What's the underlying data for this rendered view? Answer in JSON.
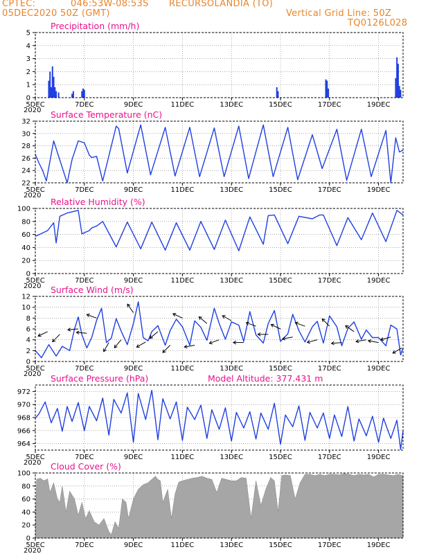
{
  "header": {
    "source": "CPTEC:",
    "coords": "046:53W-08:53S",
    "location": "RECURSOLANDIA (TO)",
    "datetime": "05DEC2020 50Z (GMT)",
    "grid_note": "Vertical Grid Line: 50Z",
    "model_code": "TQ0126L028"
  },
  "colors": {
    "header": "#e8842a",
    "titles": "#e8128c",
    "lines": "#1f3fe0",
    "cloud": "#a6a6a6"
  },
  "x_axis": {
    "day_range": [
      0,
      15
    ],
    "tick_days": [
      0,
      2,
      4,
      6,
      8,
      10,
      12,
      14
    ],
    "tick_labels": [
      "5DEC",
      "7DEC",
      "9DEC",
      "11DEC",
      "13DEC",
      "15DEC",
      "17DEC",
      "19DEC"
    ],
    "year_label": "2020"
  },
  "chart_data": [
    {
      "id": "precip",
      "type": "bar",
      "title": "Precipitation (mm/h)",
      "ylim": [
        0,
        5
      ],
      "yticks": [
        0,
        1,
        2,
        3,
        4,
        5
      ],
      "x": [
        0.55,
        0.6,
        0.65,
        0.7,
        0.75,
        0.8,
        0.85,
        0.95,
        1.5,
        1.55,
        1.9,
        1.95,
        2.0,
        9.85,
        9.9,
        11.85,
        11.9,
        11.95,
        14.7,
        14.75,
        14.8,
        14.85,
        14.9
      ],
      "values": [
        1.3,
        2.0,
        0.8,
        2.4,
        1.6,
        0.8,
        0.5,
        0.4,
        0.3,
        0.5,
        0.5,
        0.7,
        0.6,
        0.8,
        0.5,
        1.4,
        1.3,
        0.7,
        1.5,
        3.1,
        2.6,
        0.9,
        0.6
      ]
    },
    {
      "id": "temp",
      "type": "line",
      "title": "Surface Temperature (nC)",
      "ylim": [
        22,
        32
      ],
      "yticks": [
        22,
        24,
        26,
        28,
        30,
        32
      ],
      "x": [
        0,
        0.15,
        0.3,
        0.45,
        0.75,
        1.3,
        1.5,
        1.75,
        2.0,
        2.2,
        2.3,
        2.5,
        2.75,
        3.3,
        3.4,
        3.75,
        4.3,
        4.7,
        5.3,
        5.7,
        6.3,
        6.7,
        7.3,
        7.7,
        8.3,
        8.7,
        9.3,
        9.7,
        10.3,
        10.7,
        11.3,
        11.7,
        12.3,
        12.7,
        13.3,
        13.7,
        14.3,
        14.5,
        14.7,
        14.85,
        15.0
      ],
      "values": [
        26.6,
        25.2,
        24.0,
        22.3,
        28.8,
        22.0,
        25.8,
        28.8,
        28.5,
        26.5,
        26.1,
        26.3,
        22.3,
        31.2,
        30.8,
        23.6,
        31.4,
        23.3,
        31.0,
        23.1,
        31.0,
        23.0,
        30.9,
        23.0,
        31.2,
        22.7,
        31.4,
        23.0,
        31.0,
        22.5,
        29.8,
        24.3,
        30.7,
        22.4,
        30.7,
        23.0,
        30.5,
        22.0,
        29.3,
        27.0,
        27.3
      ]
    },
    {
      "id": "rh",
      "type": "line",
      "title": "Relative Humidity (%)",
      "ylim": [
        0,
        100
      ],
      "yticks": [
        0,
        20,
        40,
        60,
        80,
        100
      ],
      "x": [
        0,
        0.5,
        0.75,
        0.85,
        1.0,
        1.3,
        1.75,
        1.9,
        2.2,
        2.3,
        2.5,
        2.75,
        3.3,
        3.75,
        4.3,
        4.75,
        5.3,
        5.75,
        6.3,
        6.75,
        7.3,
        7.75,
        8.3,
        8.75,
        9.3,
        9.5,
        9.75,
        10.3,
        10.75,
        11.3,
        11.6,
        11.75,
        12.3,
        12.75,
        13.3,
        13.75,
        14.3,
        14.75,
        15.0
      ],
      "values": [
        57,
        66,
        78,
        47,
        88,
        93,
        97,
        61,
        66,
        70,
        73,
        80,
        41,
        79,
        38,
        79,
        36,
        78,
        36,
        80,
        37,
        82,
        35,
        87,
        45,
        89,
        90,
        46,
        88,
        84,
        90,
        90,
        43,
        86,
        52,
        93,
        49,
        97,
        90
      ]
    },
    {
      "id": "wind",
      "type": "line",
      "title": "Surface Wind (m/s)",
      "ylim": [
        0,
        12
      ],
      "yticks": [
        0,
        2,
        4,
        6,
        8,
        10,
        12
      ],
      "x": [
        0,
        0.25,
        0.55,
        0.85,
        1.1,
        1.4,
        1.6,
        1.75,
        1.9,
        2.1,
        2.3,
        2.5,
        2.7,
        2.9,
        3.1,
        3.3,
        3.5,
        3.75,
        4.0,
        4.2,
        4.4,
        4.6,
        4.75,
        5.0,
        5.3,
        5.5,
        5.75,
        6.0,
        6.3,
        6.5,
        6.75,
        7.0,
        7.3,
        7.5,
        7.75,
        8.0,
        8.3,
        8.5,
        8.75,
        9.0,
        9.3,
        9.5,
        9.75,
        10.0,
        10.3,
        10.5,
        10.75,
        11.0,
        11.3,
        11.5,
        11.75,
        12.0,
        12.3,
        12.5,
        12.75,
        13.0,
        13.3,
        13.5,
        13.75,
        14.0,
        14.3,
        14.5,
        14.75,
        14.9,
        15.0
      ],
      "values": [
        2,
        0.7,
        3.1,
        1.0,
        2.8,
        2.0,
        6.0,
        8.2,
        4.9,
        2.5,
        4.4,
        7.6,
        9.8,
        3.5,
        4.3,
        7.9,
        5.6,
        3.1,
        7.0,
        11.0,
        4.4,
        3.8,
        5.5,
        6.6,
        3.0,
        5.7,
        7.8,
        6.4,
        3.0,
        7.5,
        6.3,
        3.9,
        9.8,
        7.0,
        4.1,
        7.3,
        6.7,
        3.7,
        9.2,
        4.9,
        3.4,
        7.0,
        9.4,
        3.7,
        5.1,
        8.7,
        5.7,
        3.6,
        6.4,
        7.4,
        3.4,
        8.4,
        6.4,
        2.9,
        6.1,
        7.3,
        4.1,
        5.8,
        4.4,
        4.4,
        2.9,
        6.7,
        6.0,
        1.2,
        2.5
      ]
    },
    {
      "id": "pressure",
      "type": "line",
      "title": "Surface Pressure (hPa)",
      "annotation": "Model Altitude: 377.431 m",
      "ylim": [
        963,
        973
      ],
      "yticks": [
        964,
        966,
        968,
        970,
        972
      ],
      "x": [
        0,
        0.15,
        0.4,
        0.65,
        0.9,
        1.1,
        1.3,
        1.5,
        1.75,
        2.0,
        2.2,
        2.5,
        2.75,
        3.0,
        3.2,
        3.5,
        3.75,
        4.0,
        4.2,
        4.5,
        4.75,
        5.0,
        5.2,
        5.5,
        5.75,
        6.0,
        6.2,
        6.5,
        6.75,
        7.0,
        7.2,
        7.5,
        7.75,
        8.0,
        8.2,
        8.5,
        8.75,
        9.0,
        9.2,
        9.5,
        9.75,
        10.0,
        10.2,
        10.5,
        10.75,
        11.0,
        11.2,
        11.5,
        11.75,
        12.0,
        12.2,
        12.5,
        12.75,
        13.0,
        13.2,
        13.5,
        13.75,
        14.0,
        14.2,
        14.5,
        14.75,
        14.9,
        15.0
      ],
      "values": [
        967.9,
        968.6,
        970.4,
        967.2,
        969.4,
        965.9,
        969.7,
        967.4,
        970.3,
        966.0,
        969.7,
        967.5,
        971.0,
        965.3,
        970.8,
        968.7,
        971.8,
        964.2,
        971.7,
        967.7,
        972.2,
        964.6,
        970.9,
        967.8,
        970.4,
        964.5,
        969.6,
        967.7,
        969.9,
        964.8,
        969.2,
        966.2,
        969.5,
        964.4,
        968.8,
        966.4,
        968.9,
        964.7,
        968.7,
        966.2,
        970.2,
        963.9,
        968.4,
        966.6,
        969.8,
        964.5,
        968.8,
        966.4,
        968.7,
        964.8,
        968.4,
        965.1,
        969.7,
        964.4,
        967.8,
        965.2,
        968.2,
        964.2,
        967.9,
        964.8,
        967.6,
        963.1,
        966.0
      ]
    },
    {
      "id": "cloud",
      "type": "area",
      "title": "Cloud Cover (%)",
      "ylim": [
        0,
        100
      ],
      "yticks": [
        0,
        20,
        40,
        60,
        80,
        100
      ],
      "x": [
        0,
        0.05,
        0.2,
        0.35,
        0.5,
        0.6,
        0.75,
        0.9,
        1.0,
        1.1,
        1.25,
        1.4,
        1.6,
        1.75,
        1.9,
        2.05,
        2.2,
        2.4,
        2.6,
        2.8,
        3.0,
        3.1,
        3.25,
        3.4,
        3.55,
        3.7,
        3.8,
        4.0,
        4.2,
        4.4,
        4.6,
        4.75,
        4.9,
        5.0,
        5.1,
        5.2,
        5.4,
        5.55,
        5.7,
        5.85,
        6.0,
        6.2,
        6.4,
        6.6,
        6.8,
        7.0,
        7.2,
        7.4,
        7.6,
        7.8,
        8.0,
        8.2,
        8.4,
        8.6,
        8.8,
        9.0,
        9.2,
        9.4,
        9.6,
        9.75,
        9.9,
        10.05,
        10.2,
        10.4,
        10.6,
        10.8,
        11.0,
        11.2,
        11.4,
        11.6,
        11.8,
        12.0,
        12.2,
        12.4,
        12.6,
        12.8,
        13.0,
        13.2,
        13.4,
        13.6,
        13.8,
        14.0,
        14.2,
        14.4,
        14.6,
        14.8,
        15.0
      ],
      "values": [
        9,
        90,
        92,
        88,
        91,
        70,
        85,
        60,
        55,
        80,
        40,
        72,
        60,
        35,
        55,
        30,
        42,
        25,
        20,
        30,
        10,
        5,
        25,
        15,
        60,
        55,
        30,
        60,
        75,
        82,
        85,
        90,
        95,
        90,
        88,
        55,
        75,
        30,
        68,
        86,
        88,
        90,
        92,
        93,
        95,
        92,
        90,
        70,
        92,
        90,
        88,
        88,
        93,
        92,
        30,
        88,
        50,
        75,
        93,
        88,
        40,
        96,
        97,
        96,
        60,
        85,
        98,
        98,
        96,
        98,
        96,
        98,
        98,
        97,
        99,
        98,
        96,
        98,
        97,
        98,
        94,
        98,
        98,
        97,
        96,
        98,
        96
      ]
    }
  ],
  "wind_barbs": [
    {
      "day": 0.5,
      "speed": 5.5,
      "toward_deg": 155
    },
    {
      "day": 1.0,
      "speed": 5.0,
      "toward_deg": 135
    },
    {
      "day": 1.75,
      "speed": 6.0,
      "toward_deg": 175
    },
    {
      "day": 2.1,
      "speed": 5.2,
      "toward_deg": 185
    },
    {
      "day": 2.5,
      "speed": 8.0,
      "toward_deg": 200
    },
    {
      "day": 3.0,
      "speed": 3.5,
      "toward_deg": 120
    },
    {
      "day": 3.5,
      "speed": 4.0,
      "toward_deg": 130
    },
    {
      "day": 4.0,
      "speed": 9.0,
      "toward_deg": 235
    },
    {
      "day": 4.5,
      "speed": 3.6,
      "toward_deg": 150
    },
    {
      "day": 5.0,
      "speed": 5.5,
      "toward_deg": 140
    },
    {
      "day": 5.5,
      "speed": 3.0,
      "toward_deg": 135
    },
    {
      "day": 6.0,
      "speed": 8.0,
      "toward_deg": 205
    },
    {
      "day": 6.5,
      "speed": 3.0,
      "toward_deg": 170
    },
    {
      "day": 7.0,
      "speed": 7.0,
      "toward_deg": 220
    },
    {
      "day": 7.5,
      "speed": 4.0,
      "toward_deg": 160
    },
    {
      "day": 8.0,
      "speed": 7.5,
      "toward_deg": 210
    },
    {
      "day": 8.5,
      "speed": 3.5,
      "toward_deg": 180
    },
    {
      "day": 9.0,
      "speed": 6.5,
      "toward_deg": 200
    },
    {
      "day": 9.5,
      "speed": 5.0,
      "toward_deg": 180
    },
    {
      "day": 10.0,
      "speed": 6.0,
      "toward_deg": 205
    },
    {
      "day": 10.5,
      "speed": 4.5,
      "toward_deg": 170
    },
    {
      "day": 11.0,
      "speed": 6.5,
      "toward_deg": 200
    },
    {
      "day": 11.5,
      "speed": 4.0,
      "toward_deg": 165
    },
    {
      "day": 12.0,
      "speed": 6.5,
      "toward_deg": 225
    },
    {
      "day": 12.5,
      "speed": 3.5,
      "toward_deg": 175
    },
    {
      "day": 13.0,
      "speed": 5.5,
      "toward_deg": 215
    },
    {
      "day": 13.5,
      "speed": 4.0,
      "toward_deg": 170
    },
    {
      "day": 14.0,
      "speed": 3.5,
      "toward_deg": 190
    },
    {
      "day": 14.5,
      "speed": 4.5,
      "toward_deg": 165
    },
    {
      "day": 14.95,
      "speed": 2.5,
      "toward_deg": 150
    }
  ]
}
